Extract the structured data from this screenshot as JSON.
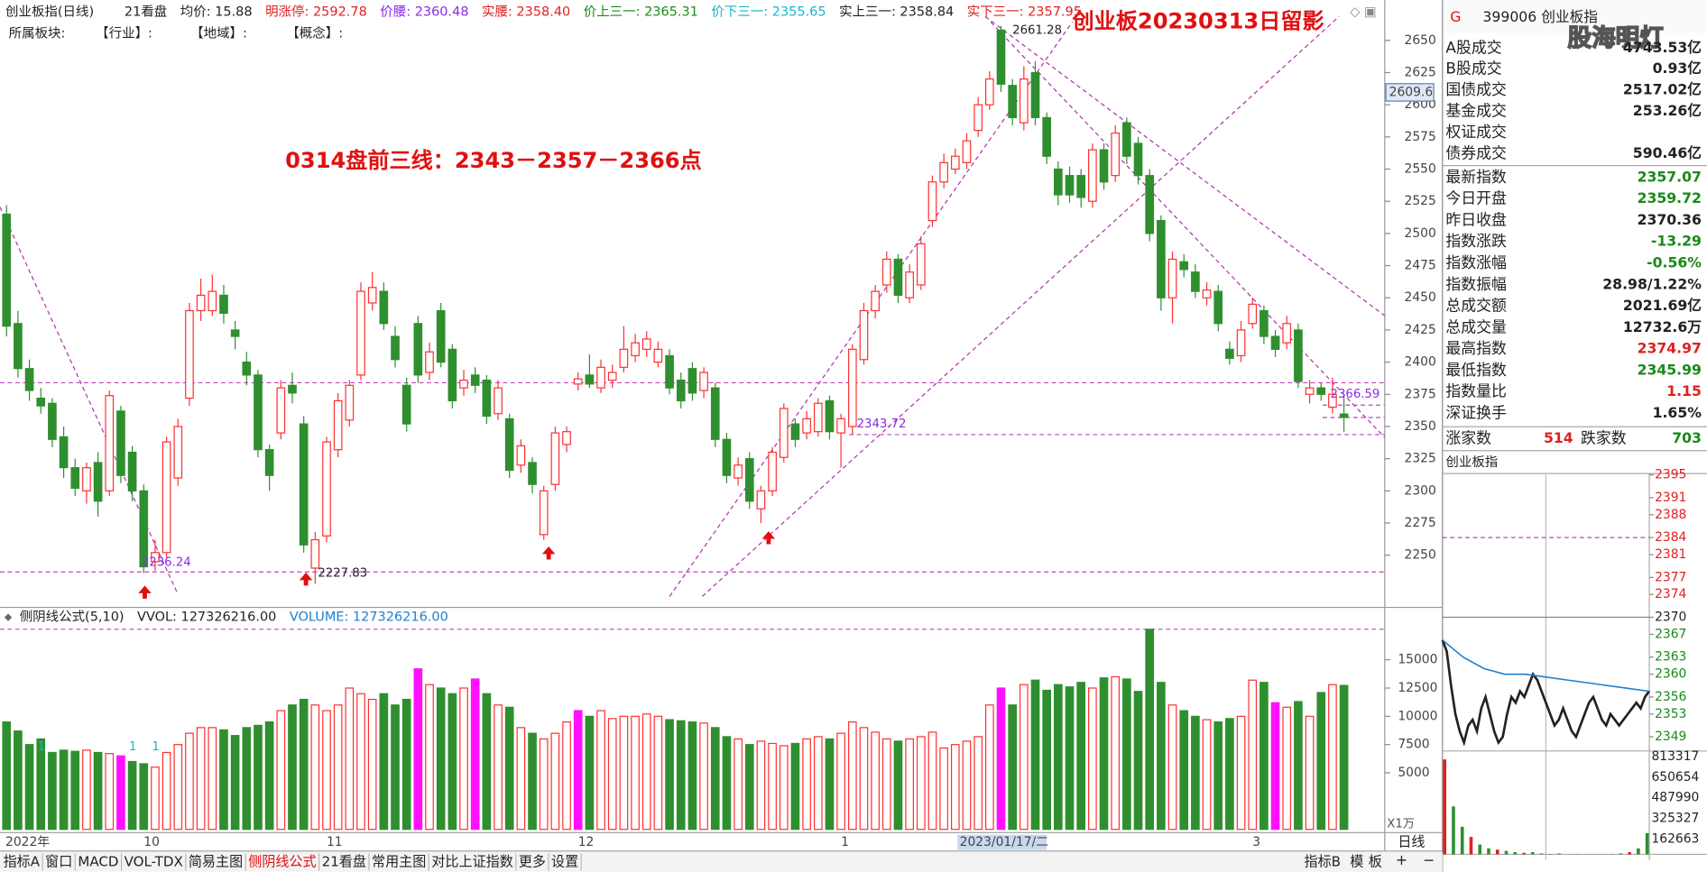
{
  "header": {
    "items": [
      {
        "text": "创业板指(日线)",
        "color": "#222"
      },
      {
        "text": "21看盘",
        "color": "#222"
      },
      {
        "text": "均价: 15.88",
        "color": "#222"
      },
      {
        "text": "明涨停: 2592.78",
        "color": "#e02020"
      },
      {
        "text": "价腰: 2360.48",
        "color": "#8a2be2"
      },
      {
        "text": "实腰: 2358.40",
        "color": "#e02020"
      },
      {
        "text": "价上三一: 2365.31",
        "color": "#1a8a1a"
      },
      {
        "text": "价下三一: 2355.65",
        "color": "#19b5c8"
      },
      {
        "text": "实上三一: 2358.84",
        "color": "#222"
      },
      {
        "text": "实下三一: 2357.95",
        "color": "#e02020"
      }
    ],
    "row2": [
      "所属板块:",
      "【行业】:",
      "【地域】:",
      "【概念】:"
    ],
    "title": "创业板20230313日留影",
    "note": "0314盘前三线：2343－2357－2366点"
  },
  "volume_header": [
    "侧阴线公式(5,10)",
    "VVOL: 127326216.00",
    "VOLUME: 127326216.00"
  ],
  "side_panel": {
    "code": "G",
    "name": "399006 创业板指",
    "watermark": "股海明灯",
    "rows": [
      {
        "label": "A股成交",
        "value": "4743.53亿",
        "color": "#222"
      },
      {
        "label": "B股成交",
        "value": "0.93亿",
        "color": "#222"
      },
      {
        "label": "国债成交",
        "value": "2517.02亿",
        "color": "#222"
      },
      {
        "label": "基金成交",
        "value": "253.26亿",
        "color": "#222"
      },
      {
        "label": "权证成交",
        "value": null,
        "color": "#222"
      },
      {
        "label": "债券成交",
        "value": "590.46亿",
        "color": "#222"
      },
      {
        "label": "最新指数",
        "value": "2357.07",
        "color": "#1a8a1a"
      },
      {
        "label": "今日开盘",
        "value": "2359.72",
        "color": "#1a8a1a"
      },
      {
        "label": "昨日收盘",
        "value": "2370.36",
        "color": "#222"
      },
      {
        "label": "指数涨跌",
        "value": "-13.29",
        "color": "#1a8a1a"
      },
      {
        "label": "指数涨幅",
        "value": "-0.56%",
        "color": "#1a8a1a"
      },
      {
        "label": "指数振幅",
        "value": "28.98/1.22%",
        "color": "#222"
      },
      {
        "label": "总成交额",
        "value": "2021.69亿",
        "color": "#222"
      },
      {
        "label": "总成交量",
        "value": "12732.6万",
        "color": "#222"
      },
      {
        "label": "最高指数",
        "value": "2374.97",
        "color": "#e02020"
      },
      {
        "label": "最低指数",
        "value": "2345.99",
        "color": "#1a8a1a"
      },
      {
        "label": "指数量比",
        "value": "1.15",
        "color": "#e02020"
      },
      {
        "label": "深证换手",
        "value": "1.65%",
        "color": "#222"
      }
    ],
    "breadth": {
      "up_label": "涨家数",
      "up": "514",
      "down_label": "跌家数",
      "down": "703"
    },
    "intraday_title": "创业板指"
  },
  "toolbar": {
    "tabs": [
      "指标A",
      "窗口",
      "MACD",
      "VOL-TDX",
      "简易主图",
      "侧阴线公式",
      "21看盘",
      "常用主图",
      "对比上证指数",
      "更多",
      "设置"
    ],
    "active": 5,
    "right": [
      "指标B",
      "模",
      "板"
    ],
    "period": "日线",
    "unit": "X1万",
    "zoom": [
      "+",
      "−"
    ]
  },
  "chart_data": [
    {
      "type": "candlestick",
      "up_color": "#ff3030",
      "down_color": "#2f8f2f",
      "categories": [
        "2022年",
        null,
        null,
        null,
        null,
        null,
        null,
        null,
        null,
        null,
        null,
        null,
        "10",
        null,
        null,
        null,
        null,
        null,
        null,
        null,
        null,
        null,
        null,
        null,
        null,
        null,
        null,
        null,
        "11",
        null,
        null,
        null,
        null,
        null,
        null,
        null,
        null,
        null,
        null,
        null,
        null,
        null,
        null,
        null,
        null,
        null,
        null,
        null,
        null,
        null,
        "12",
        null,
        null,
        null,
        null,
        null,
        null,
        null,
        null,
        null,
        null,
        null,
        null,
        null,
        null,
        null,
        null,
        null,
        null,
        null,
        null,
        null,
        null,
        "1",
        null,
        null,
        null,
        null,
        null,
        null,
        null,
        null,
        null,
        null,
        null,
        null,
        null,
        null,
        null,
        null,
        null,
        null,
        null,
        null,
        null,
        null,
        null,
        null,
        null,
        null,
        null,
        null,
        null,
        null,
        null,
        null,
        null,
        null,
        null,
        "3",
        null,
        null,
        null,
        null,
        null,
        null,
        null,
        null
      ],
      "open": [
        2515,
        2430,
        2395,
        2372,
        2368,
        2342,
        2318,
        2300,
        2322,
        2300,
        2362,
        2330,
        2300,
        2245,
        2252,
        2310,
        2372,
        2440,
        2440,
        2452,
        2425,
        2400,
        2390,
        2332,
        2345,
        2382,
        2352,
        2240,
        2265,
        2332,
        2355,
        2390,
        2446,
        2455,
        2420,
        2382,
        2430,
        2392,
        2440,
        2410,
        2380,
        2390,
        2386,
        2360,
        2356,
        2320,
        2322,
        2266,
        2305,
        2336,
        2383,
        2390,
        2380,
        2386,
        2396,
        2405,
        2410,
        2400,
        2405,
        2386,
        2395,
        2378,
        2380,
        2340,
        2310,
        2325,
        2286,
        2300,
        2326,
        2352,
        2345,
        2346,
        2370,
        2345,
        2350,
        2402,
        2440,
        2460,
        2480,
        2450,
        2460,
        2510,
        2540,
        2550,
        2555,
        2580,
        2600,
        2658,
        2615,
        2586,
        2625,
        2590,
        2550,
        2545,
        2545,
        2525,
        2565,
        2545,
        2586,
        2570,
        2545,
        2510,
        2450,
        2478,
        2470,
        2450,
        2455,
        2410,
        2405,
        2430,
        2440,
        2420,
        2415,
        2425,
        2375,
        2380,
        2365,
        2359.72
      ],
      "high": [
        2522,
        2440,
        2402,
        2380,
        2372,
        2350,
        2325,
        2322,
        2330,
        2378,
        2366,
        2335,
        2305,
        2262,
        2342,
        2356,
        2446,
        2465,
        2468,
        2460,
        2432,
        2408,
        2394,
        2336,
        2386,
        2392,
        2358,
        2268,
        2342,
        2376,
        2386,
        2462,
        2470,
        2462,
        2428,
        2388,
        2436,
        2415,
        2446,
        2414,
        2394,
        2396,
        2390,
        2386,
        2360,
        2340,
        2326,
        2304,
        2350,
        2350,
        2392,
        2406,
        2402,
        2398,
        2428,
        2422,
        2424,
        2416,
        2410,
        2392,
        2400,
        2396,
        2384,
        2345,
        2326,
        2330,
        2304,
        2334,
        2368,
        2356,
        2362,
        2372,
        2374,
        2360,
        2414,
        2446,
        2460,
        2486,
        2484,
        2476,
        2498,
        2545,
        2562,
        2566,
        2578,
        2606,
        2626,
        2661.28,
        2620,
        2630,
        2634,
        2594,
        2556,
        2552,
        2550,
        2570,
        2570,
        2584,
        2590,
        2575,
        2550,
        2514,
        2486,
        2484,
        2476,
        2462,
        2460,
        2416,
        2432,
        2450,
        2444,
        2425,
        2436,
        2430,
        2386,
        2384,
        2388,
        2374.97
      ],
      "low": [
        2420,
        2388,
        2370,
        2360,
        2334,
        2310,
        2296,
        2290,
        2280,
        2296,
        2306,
        2292,
        2236.24,
        2238,
        2248,
        2304,
        2366,
        2432,
        2436,
        2430,
        2410,
        2382,
        2326,
        2300,
        2340,
        2368,
        2252,
        2227.83,
        2260,
        2326,
        2350,
        2386,
        2440,
        2425,
        2396,
        2346,
        2384,
        2386,
        2396,
        2364,
        2374,
        2376,
        2352,
        2355,
        2310,
        2314,
        2298,
        2262,
        2300,
        2330,
        2378,
        2380,
        2376,
        2380,
        2392,
        2400,
        2404,
        2396,
        2375,
        2364,
        2370,
        2372,
        2334,
        2306,
        2304,
        2286,
        2275,
        2296,
        2322,
        2334,
        2340,
        2342,
        2340,
        2318,
        2343.72,
        2398,
        2434,
        2454,
        2446,
        2446,
        2456,
        2505,
        2535,
        2546,
        2550,
        2575,
        2596,
        2610,
        2584,
        2580,
        2584,
        2554,
        2522,
        2524,
        2520,
        2520,
        2534,
        2540,
        2554,
        2538,
        2494,
        2440,
        2430,
        2466,
        2450,
        2444,
        2424,
        2398,
        2400,
        2426,
        2414,
        2404,
        2410,
        2380,
        2368,
        2370,
        2360,
        2345.99
      ],
      "close": [
        2428,
        2395,
        2378,
        2366,
        2340,
        2318,
        2302,
        2318,
        2292,
        2374,
        2312,
        2300,
        2241,
        2252,
        2338,
        2350,
        2440,
        2452,
        2455,
        2438,
        2420,
        2390,
        2332,
        2312,
        2380,
        2376,
        2258,
        2262,
        2338,
        2370,
        2382,
        2455,
        2458,
        2430,
        2402,
        2352,
        2390,
        2408,
        2400,
        2370,
        2386,
        2382,
        2358,
        2380,
        2316,
        2335,
        2305,
        2300,
        2345,
        2346,
        2387,
        2383,
        2396,
        2392,
        2410,
        2415,
        2418,
        2410,
        2380,
        2370,
        2376,
        2392,
        2340,
        2312,
        2320,
        2292,
        2300,
        2330,
        2364,
        2340,
        2356,
        2368,
        2346,
        2356,
        2410,
        2440,
        2455,
        2480,
        2452,
        2470,
        2492,
        2540,
        2555,
        2560,
        2572,
        2600,
        2620,
        2616,
        2590,
        2620,
        2590,
        2560,
        2530,
        2530,
        2528,
        2565,
        2540,
        2578,
        2560,
        2545,
        2500,
        2450,
        2480,
        2472,
        2455,
        2456,
        2430,
        2403,
        2425,
        2445,
        2420,
        2410,
        2430,
        2385,
        2380,
        2375,
        2375,
        2357.07
      ],
      "ylim": [
        2212,
        2666
      ],
      "yticks": [
        2250,
        2275,
        2300,
        2325,
        2350,
        2375,
        2400,
        2425,
        2450,
        2475,
        2500,
        2525,
        2550,
        2575,
        2600,
        2625,
        2650
      ],
      "reference_lines": [
        2384,
        2366.59,
        2357,
        2343.72,
        2237
      ],
      "reference_color": "#c040c0",
      "price_labels": [
        2661.28,
        2236.24,
        2227.83,
        2343.72,
        2366.59
      ],
      "cursor_price": 2609.6,
      "cursor_date": "2023/01/17/二"
    },
    {
      "type": "bar",
      "color": "#2f8f2f",
      "highlight_color": "#ff10ff",
      "highlighted": [
        10,
        36,
        41,
        50,
        87,
        111
      ],
      "values": [
        9500,
        8700,
        7500,
        8000,
        6800,
        7000,
        6900,
        7000,
        6800,
        6700,
        6500,
        6000,
        5800,
        5500,
        6800,
        7500,
        8500,
        9000,
        9000,
        8800,
        8300,
        9000,
        9200,
        9500,
        10500,
        11000,
        11500,
        11000,
        10500,
        11000,
        12500,
        12000,
        11500,
        12000,
        11000,
        11500,
        14200,
        12800,
        12500,
        12000,
        12500,
        13300,
        12000,
        11000,
        10800,
        9000,
        8500,
        8000,
        8500,
        9500,
        10500,
        10000,
        10500,
        9800,
        10000,
        10000,
        10200,
        10000,
        9700,
        9600,
        9500,
        9400,
        9000,
        8200,
        8000,
        7500,
        7800,
        7600,
        7400,
        7600,
        8000,
        8200,
        8000,
        8500,
        9500,
        9000,
        8600,
        8000,
        7800,
        8000,
        8200,
        8600,
        7200,
        7500,
        7800,
        8200,
        11000,
        12500,
        11000,
        12800,
        13200,
        12300,
        12800,
        12600,
        13000,
        12500,
        13400,
        13500,
        13300,
        12200,
        17700,
        13000,
        11000,
        10500,
        10000,
        9700,
        9500,
        9800,
        10000,
        13200,
        13000,
        11200,
        10800,
        11300,
        10000,
        12100,
        12800,
        12732.6
      ],
      "signal_label": "1",
      "signal_at": [
        3,
        11,
        13
      ],
      "ylim": [
        0,
        18000
      ],
      "yticks": [
        5000,
        7500,
        10000,
        12500,
        15000
      ]
    },
    {
      "type": "line",
      "baseline": 2370,
      "baseline_dash": 2384,
      "series": [
        {
          "color": "#222",
          "values": [
            2366,
            2364,
            2358,
            2353,
            2350,
            2348,
            2351,
            2352,
            2350,
            2354,
            2356,
            2353,
            2350,
            2348,
            2349,
            2353,
            2356,
            2355,
            2357,
            2356,
            2358,
            2360,
            2359,
            2357,
            2355,
            2353,
            2351,
            2352,
            2354,
            2352,
            2350,
            2349,
            2351,
            2353,
            2355,
            2356,
            2354,
            2352,
            2351,
            2353,
            2352,
            2351,
            2352,
            2353,
            2354,
            2355,
            2354,
            2356,
            2357.07
          ]
        },
        {
          "color": "#1e7fd0",
          "values": [
            2366,
            2363,
            2361,
            2360,
            2360,
            2359.5,
            2359,
            2358.5,
            2358,
            2357.5,
            2357
          ]
        }
      ],
      "ylim": [
        2346.9,
        2396
      ],
      "yticks": [
        2395,
        2391,
        2388,
        2384,
        2381,
        2377,
        2374,
        2370,
        2367,
        2363,
        2360,
        2356,
        2353,
        2349
      ]
    },
    {
      "type": "bar",
      "color": "#2f8f2f",
      "values": [
        790000,
        420000,
        260000,
        180000,
        120000,
        90000,
        80000,
        70000,
        60000,
        55000,
        60000,
        50000,
        45000,
        50000,
        40000,
        45000,
        40000,
        42000,
        38000,
        45000,
        50000,
        60000,
        90000,
        210000
      ],
      "ylim": [
        0,
        813317
      ],
      "yticks": [
        813317,
        650654,
        487990,
        325327,
        162663
      ]
    }
  ]
}
